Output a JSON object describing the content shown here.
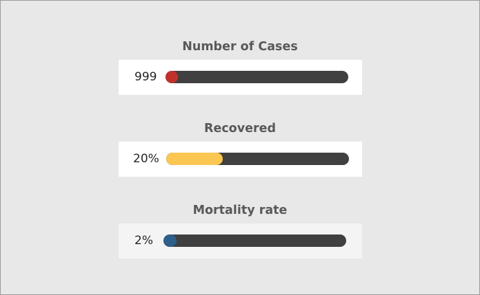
{
  "metrics": [
    {
      "title": "Number of Cases",
      "value_text": "999",
      "fill_fraction": 0.06,
      "color": "#c0312b"
    },
    {
      "title": "Recovered",
      "value_text": "20%",
      "fill_fraction": 0.31,
      "color": "#fcc652"
    },
    {
      "title": "Mortality rate",
      "value_text": "2%",
      "fill_fraction": 0.07,
      "color": "#2e5f8a"
    }
  ],
  "colors": {
    "background": "#e8e8e8",
    "card": "#ffffff",
    "track": "#404040",
    "title_text": "#595959"
  }
}
